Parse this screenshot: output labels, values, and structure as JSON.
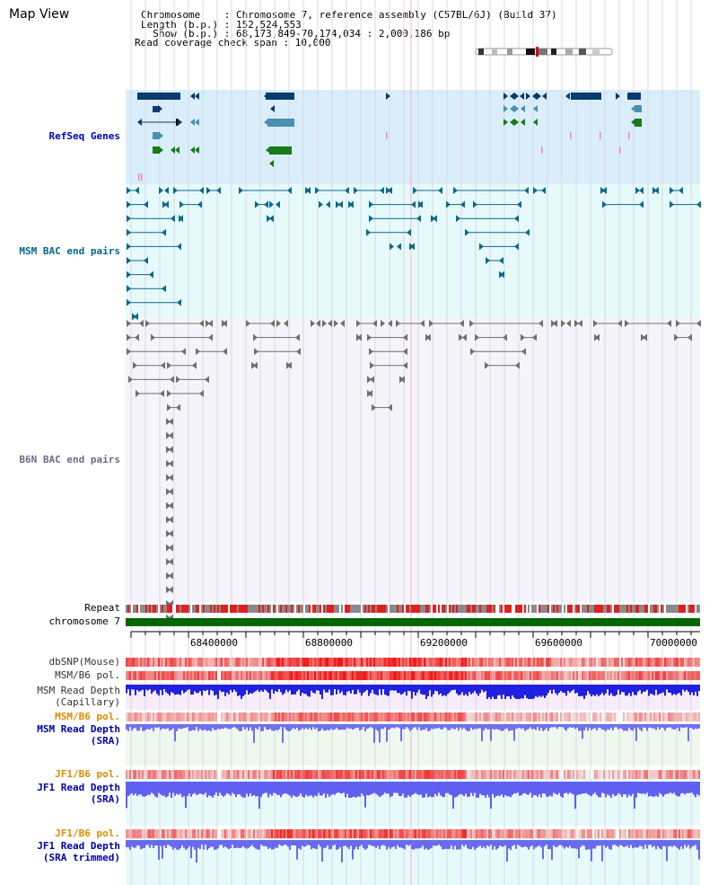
{
  "page_title": "Map View",
  "info": {
    "chromosome_line": "Chromosome    : Chromosome 7, reference assembly (C57BL/6J) (Build 37)",
    "length_line": "Length (b.p.) : 152,524,553",
    "show_line": "  Show (b.p.) : 68,173,849-70,174,034 : 2,000,186 bp",
    "coverage_line": "Read coverage check span : 10,000"
  },
  "tracks": {
    "refseq": "RefSeq Genes",
    "msm_bac": "MSM BAC end pairs",
    "b6n_bac": "B6N BAC end pairs",
    "repeat": "Repeat",
    "chromosome": "chromosome 7",
    "dbsnp": "dbSNP(Mouse)",
    "msm_b6_pol_1": "MSM/B6 pol.",
    "msm_depth_cap_1": "MSM Read Depth",
    "msm_depth_cap_2": "(Capillary)",
    "msm_b6_pol_2": "MSM/B6 pol.",
    "msm_depth_sra_1": "MSM Read Depth",
    "msm_depth_sra_2": "(SRA)",
    "jf1_b6_pol_1": "JF1/B6 pol.",
    "jf1_depth_sra_1": "JF1 Read Depth",
    "jf1_depth_sra_2": "(SRA)",
    "jf1_b6_pol_2": "JF1/B6 pol.",
    "jf1_depth_trim_1": "JF1 Read Depth",
    "jf1_depth_trim_2": "(SRA trimmed)"
  },
  "axis": {
    "ticks": [
      "68400000",
      "68800000",
      "69200000",
      "69600000",
      "70000000"
    ],
    "range": [
      68173849,
      70174034
    ]
  },
  "colors": {
    "refseq_bg": "#d9eefa",
    "msm_bac_bg": "#e6fafa",
    "b6n_bac_bg": "#f3f3fa",
    "chrom_green": "#006600",
    "label_blue": "#0000b0",
    "label_orange": "#e08a00",
    "msm_label": "#00668a",
    "refseq_label": "#0000cc",
    "dark_navy": "#0b3a6e",
    "gene_green": "#1a7a1a",
    "gene_light": "#4a90b0",
    "teal": "#0a6a8a"
  }
}
